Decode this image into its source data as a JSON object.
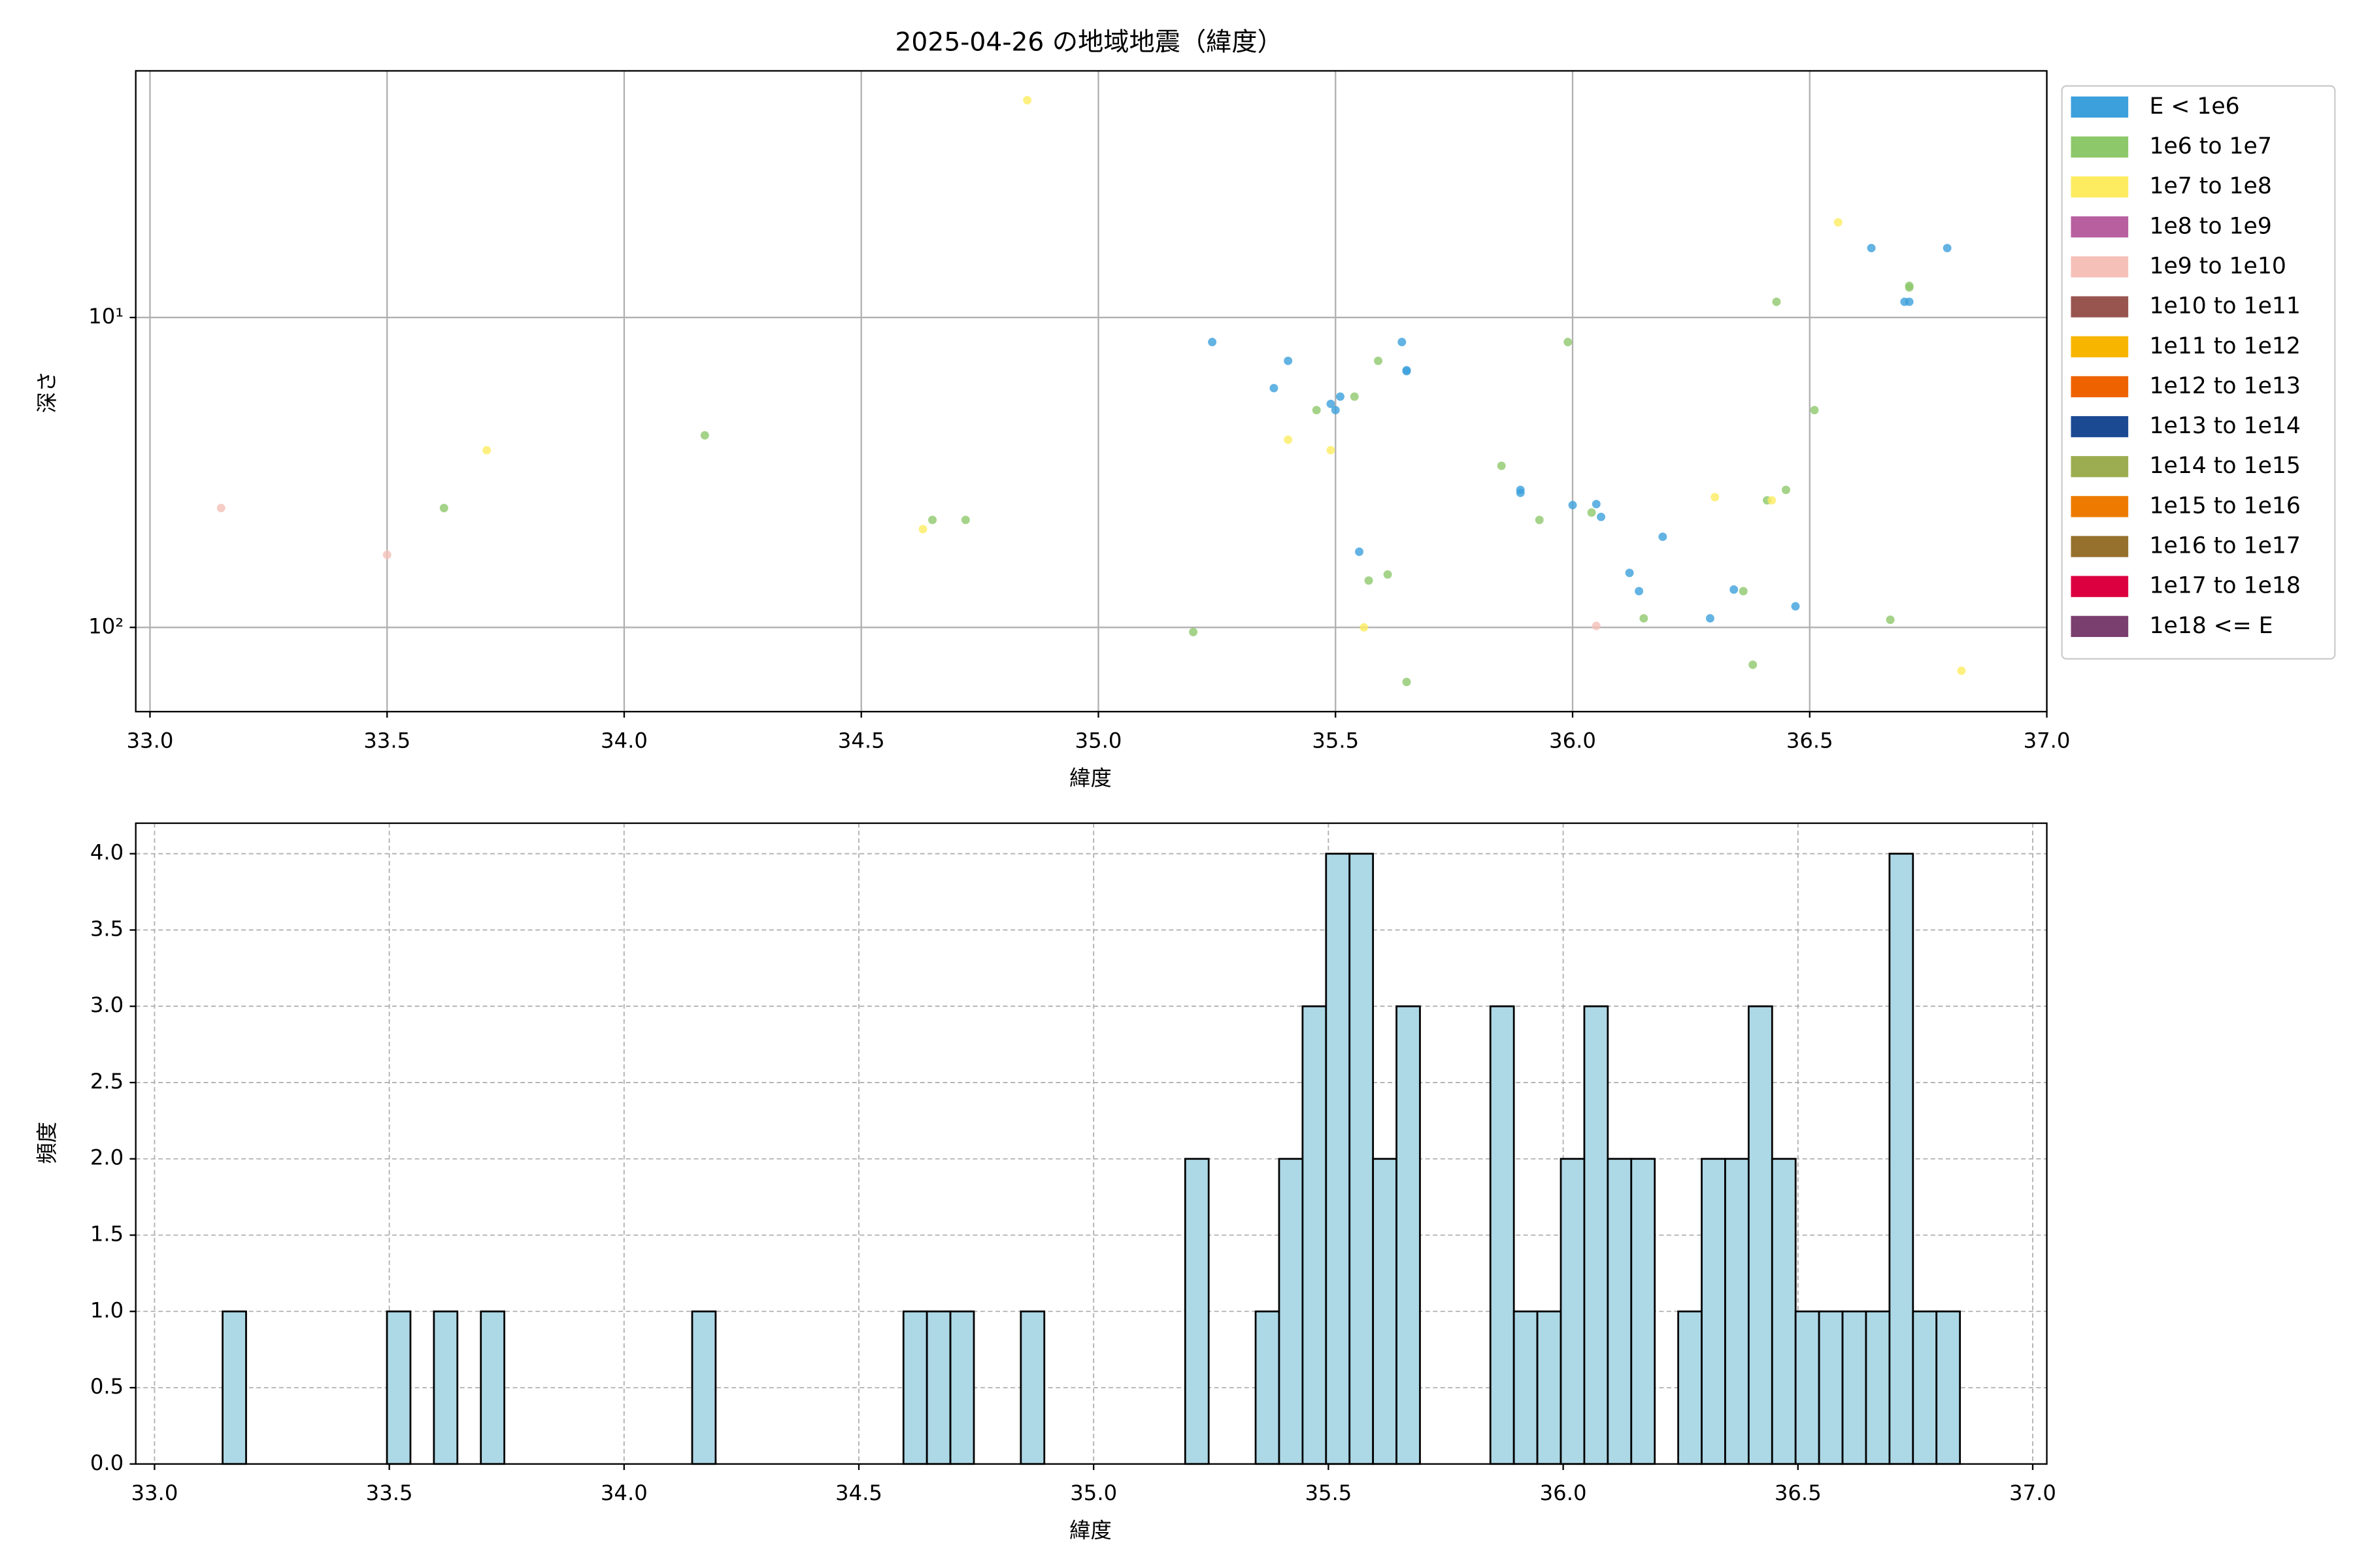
{
  "chart_data": [
    {
      "type": "scatter",
      "title": "2025-04-26 の地域地震（緯度）",
      "xlabel": "緯度",
      "ylabel": "深さ",
      "xlim": [
        32.97,
        37.0
      ],
      "ylim": [
        187,
        1.6
      ],
      "log_y": true,
      "grid": true,
      "legend": "right",
      "xticks": [
        {
          "value": 33.0,
          "label": "33.0"
        },
        {
          "value": 33.5,
          "label": "33.5"
        },
        {
          "value": 34.0,
          "label": "34.0"
        },
        {
          "value": 34.5,
          "label": "34.5"
        },
        {
          "value": 35.0,
          "label": "35.0"
        },
        {
          "value": 35.5,
          "label": "35.5"
        },
        {
          "value": 36.0,
          "label": "36.0"
        },
        {
          "value": 36.5,
          "label": "36.5"
        },
        {
          "value": 37.0,
          "label": "37.0"
        }
      ],
      "yticks": [
        {
          "value": 10,
          "label": "10¹"
        },
        {
          "value": 100,
          "label": "10²"
        }
      ],
      "series": [
        {
          "name": "E < 1e6",
          "color": "#3ca0dc",
          "x": [
            35.24,
            35.37,
            35.4,
            35.49,
            35.5,
            35.51,
            35.55,
            35.64,
            35.65,
            35.65,
            35.89,
            35.89,
            36.0,
            36.05,
            36.06,
            36.12,
            36.14,
            36.19,
            36.29,
            36.34,
            36.47,
            36.63,
            36.7,
            36.71,
            36.79
          ],
          "values": [
            12.0,
            16.9,
            13.8,
            19.0,
            19.9,
            18.0,
            57,
            12.0,
            14.8,
            14.9,
            36.8,
            36.0,
            40.3,
            40,
            44,
            66.7,
            76.4,
            51,
            93.5,
            75.5,
            85.5,
            5.97,
            8.9,
            8.9,
            5.97
          ]
        },
        {
          "name": "1e6 to 1e7",
          "color": "#8dc86b",
          "x": [
            33.62,
            34.17,
            34.65,
            34.72,
            35.2,
            35.46,
            35.54,
            35.57,
            35.59,
            35.61,
            35.65,
            35.85,
            35.93,
            35.99,
            36.04,
            36.15,
            36.36,
            36.38,
            36.41,
            36.43,
            36.45,
            36.51,
            36.67,
            36.71,
            36.71
          ],
          "values": [
            41.2,
            24.0,
            45,
            45,
            103.5,
            19.9,
            18.0,
            70.6,
            13.8,
            67.5,
            150,
            30.1,
            45,
            12,
            42.6,
            93.5,
            76.4,
            132,
            38.9,
            8.9,
            36,
            19.9,
            94.5,
            7.9,
            8.0
          ]
        },
        {
          "name": "1e7 to 1e8",
          "color": "#fdec60",
          "x": [
            33.71,
            34.63,
            34.85,
            35.4,
            35.49,
            35.56,
            36.3,
            36.42,
            36.56,
            36.82
          ],
          "values": [
            26.8,
            48.2,
            1.99,
            24.8,
            26.8,
            100,
            38,
            38.9,
            4.93,
            138
          ]
        },
        {
          "name": "1e8 to 1e9",
          "color": "#b85fa0",
          "x": [],
          "values": []
        },
        {
          "name": "1e9 to 1e10",
          "color": "#f4c0b8",
          "x": [
            33.15,
            33.5,
            36.05
          ],
          "values": [
            41.2,
            58.3,
            98.9
          ]
        },
        {
          "name": "1e10 to 1e11",
          "color": "#985550",
          "x": [],
          "values": []
        },
        {
          "name": "1e11 to 1e12",
          "color": "#f8b500",
          "x": [],
          "values": []
        },
        {
          "name": "1e12 to 1e13",
          "color": "#ee6300",
          "x": [],
          "values": []
        },
        {
          "name": "1e13 to 1e14",
          "color": "#1b4a93",
          "x": [],
          "values": []
        },
        {
          "name": "1e14 to 1e15",
          "color": "#9bad50",
          "x": [],
          "values": []
        },
        {
          "name": "1e15 to 1e16",
          "color": "#ee7b00",
          "x": [],
          "values": []
        },
        {
          "name": "1e16 to 1e17",
          "color": "#96712d",
          "x": [],
          "values": []
        },
        {
          "name": "1e17 to 1e18",
          "color": "#dd0040",
          "x": [],
          "values": []
        },
        {
          "name": "1e18 <= E",
          "color": "#7a3f6e",
          "x": [],
          "values": []
        }
      ]
    },
    {
      "type": "histogram",
      "xlabel": "緯度",
      "ylabel": "頻度",
      "color": "#add8e6",
      "edgecolor": "#000000",
      "grid": true,
      "xlim": [
        32.96,
        37.03
      ],
      "ylim": [
        0,
        4.2
      ],
      "xticks": [
        {
          "value": 33.0,
          "label": "33.0"
        },
        {
          "value": 33.5,
          "label": "33.5"
        },
        {
          "value": 34.0,
          "label": "34.0"
        },
        {
          "value": 34.5,
          "label": "34.5"
        },
        {
          "value": 35.0,
          "label": "35.0"
        },
        {
          "value": 35.5,
          "label": "35.5"
        },
        {
          "value": 36.0,
          "label": "36.0"
        },
        {
          "value": 36.5,
          "label": "36.5"
        },
        {
          "value": 37.0,
          "label": "37.0"
        }
      ],
      "yticks": [
        {
          "value": 0,
          "label": "0.0"
        },
        {
          "value": 0.5,
          "label": "0.5"
        },
        {
          "value": 1,
          "label": "1.0"
        },
        {
          "value": 1.5,
          "label": "1.5"
        },
        {
          "value": 2,
          "label": "2.0"
        },
        {
          "value": 2.5,
          "label": "2.5"
        },
        {
          "value": 3,
          "label": "3.0"
        },
        {
          "value": 3.5,
          "label": "3.5"
        },
        {
          "value": 4,
          "label": "4.0"
        }
      ],
      "bins": [
        33.145,
        33.195,
        33.245,
        33.295,
        33.345,
        33.395,
        33.445,
        33.495,
        33.545,
        33.595,
        33.645,
        33.695,
        33.745,
        33.795,
        33.845,
        33.895,
        33.945,
        33.995,
        34.045,
        34.095,
        34.145,
        34.195,
        34.245,
        34.295,
        34.345,
        34.395,
        34.445,
        34.495,
        34.545,
        34.595,
        34.645,
        34.695,
        34.745,
        34.795,
        34.845,
        34.895,
        34.945,
        34.995,
        35.045,
        35.095,
        35.145,
        35.195,
        35.245,
        35.295,
        35.345,
        35.395,
        35.445,
        35.495,
        35.545,
        35.595,
        35.645,
        35.695,
        35.745,
        35.795,
        35.845,
        35.895,
        35.945,
        35.995,
        36.045,
        36.095,
        36.145,
        36.195,
        36.245,
        36.295,
        36.345,
        36.395,
        36.445,
        36.495,
        36.545,
        36.595,
        36.645,
        36.695,
        36.745,
        36.795,
        36.845
      ],
      "counts": [
        1,
        0,
        0,
        0,
        0,
        0,
        0,
        1,
        0,
        1,
        0,
        1,
        0,
        0,
        0,
        0,
        0,
        0,
        0,
        0,
        1,
        0,
        0,
        0,
        0,
        0,
        0,
        0,
        0,
        1,
        1,
        1,
        0,
        0,
        1,
        0,
        0,
        0,
        0,
        0,
        0,
        2,
        0,
        0,
        1,
        2,
        3,
        4,
        4,
        2,
        3,
        0,
        0,
        0,
        3,
        1,
        1,
        2,
        3,
        2,
        2,
        0,
        1,
        2,
        2,
        3,
        2,
        1,
        1,
        1,
        1,
        4,
        1,
        1
      ]
    }
  ]
}
